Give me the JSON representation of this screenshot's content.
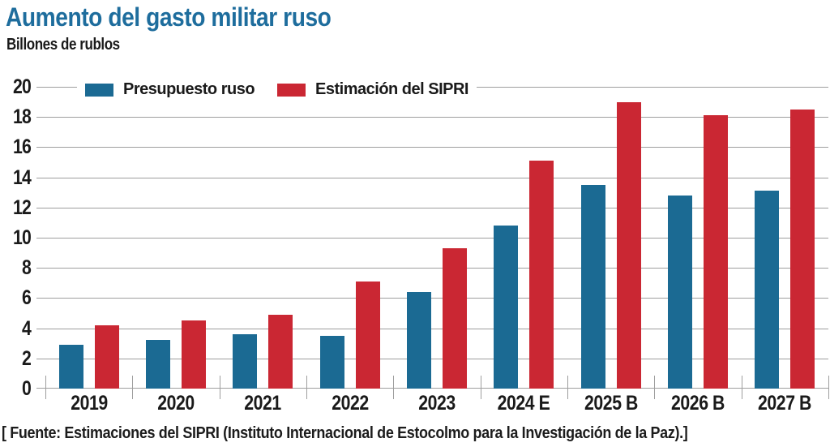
{
  "header": {
    "title": "Aumento del gasto militar ruso",
    "subtitle": "Billones de rublos"
  },
  "source_note": "[ Fuente: Estimaciones del SIPRI (Instituto Internacional de Estocolmo para la Investigación de la Paz).]",
  "colors": {
    "title_blue": "#1E6D9D",
    "budget_blue": "#1B6A93",
    "sipri_red": "#CA2733",
    "grid_gray": "#9E9E9E",
    "text_dark": "#1A1A1A",
    "background": "#FFFFFF"
  },
  "chart_data": {
    "type": "bar",
    "title": "Aumento del gasto militar ruso",
    "ylabel": "Billones de rublos",
    "xlabel": "",
    "categories": [
      "2019",
      "2020",
      "2021",
      "2022",
      "2023",
      "2024 E",
      "2025 B",
      "2026 B",
      "2027 B"
    ],
    "series": [
      {
        "name": "Presupuesto ruso",
        "color": "#1B6A93",
        "values": [
          2.9,
          3.2,
          3.6,
          3.5,
          6.4,
          10.8,
          13.5,
          12.8,
          13.1
        ]
      },
      {
        "name": "Estimación del SIPRI",
        "color": "#CA2733",
        "values": [
          4.2,
          4.5,
          4.9,
          7.1,
          9.3,
          15.1,
          19.0,
          18.1,
          18.5
        ]
      }
    ],
    "ylim": [
      0,
      20
    ],
    "ytick_step": 2,
    "yticks": [
      0,
      2,
      4,
      6,
      8,
      10,
      12,
      14,
      16,
      18,
      20
    ],
    "grid": true,
    "legend_position": "top-left-inside"
  }
}
